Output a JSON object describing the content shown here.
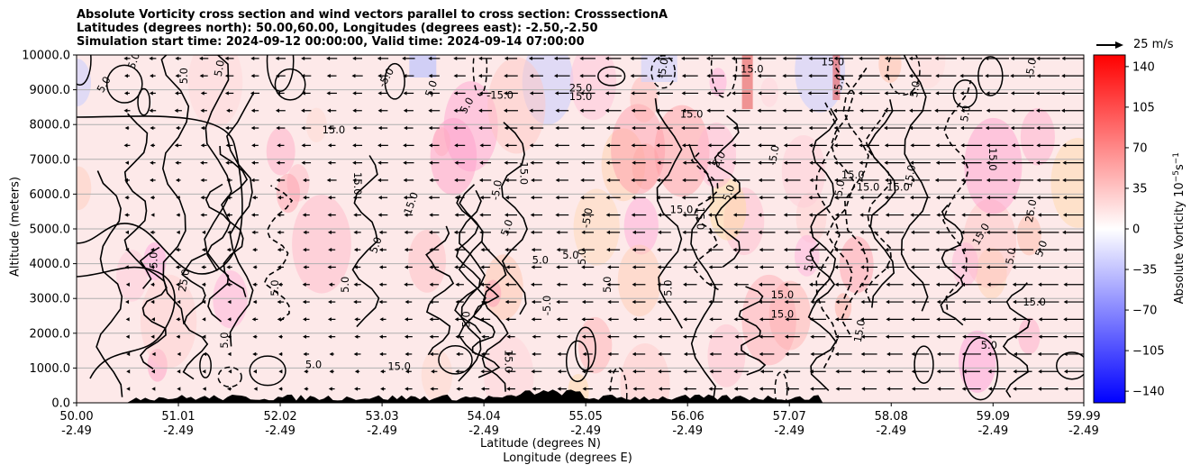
{
  "title_lines": [
    "Absolute Vorticity cross section and wind vectors parallel to cross section: CrosssectionA",
    "Latitudes (degrees north): 50.00,60.00, Longitudes (degrees east): -2.50,-2.50",
    "Simulation start time: 2024-09-12 00:00:00, Valid time: 2024-09-14 07:00:00"
  ],
  "colors": {
    "positive": "#ff0000",
    "negative": "#0000ff",
    "contour": "#000000",
    "terrain": "#000000",
    "grid": "#b0b0b0"
  },
  "chart_data": {
    "type": "heatmap",
    "subtype": "filled contour cross section with wind vectors",
    "ylabel": "Altitude (meters)",
    "xlabel_lines": [
      "Latitude (degrees N)",
      "Longitude (degrees E)"
    ],
    "x_ticks": [
      {
        "lat": "50.00",
        "lon": "-2.49"
      },
      {
        "lat": "51.01",
        "lon": "-2.49"
      },
      {
        "lat": "52.02",
        "lon": "-2.49"
      },
      {
        "lat": "53.03",
        "lon": "-2.49"
      },
      {
        "lat": "54.04",
        "lon": "-2.49"
      },
      {
        "lat": "55.05",
        "lon": "-2.49"
      },
      {
        "lat": "56.06",
        "lon": "-2.49"
      },
      {
        "lat": "57.07",
        "lon": "-2.49"
      },
      {
        "lat": "58.08",
        "lon": "-2.49"
      },
      {
        "lat": "59.09",
        "lon": "-2.49"
      },
      {
        "lat": "59.99",
        "lon": "-2.49"
      }
    ],
    "xlim": [
      50.0,
      59.99
    ],
    "ylim": [
      0,
      10000
    ],
    "y_ticks": [
      "0.0",
      "1000.0",
      "2000.0",
      "3000.0",
      "4000.0",
      "5000.0",
      "6000.0",
      "7000.0",
      "8000.0",
      "9000.0",
      "10000.0"
    ],
    "y_tick_values": [
      0,
      1000,
      2000,
      3000,
      4000,
      5000,
      6000,
      7000,
      8000,
      9000,
      10000
    ],
    "grid": "horizontal",
    "colorbar": {
      "label": "Absolute Vorticity 10$^{-5}$s$^{-1}$",
      "label_base": "Absolute Vorticity 10",
      "label_exp1": "−5",
      "label_mid": "s",
      "label_exp2": "−1",
      "range": [
        -150,
        150
      ],
      "ticks": [
        "140",
        "105",
        "70",
        "35",
        "0",
        "−35",
        "−70",
        "−105",
        "−140"
      ],
      "tick_values": [
        140,
        105,
        70,
        35,
        0,
        -35,
        -70,
        -105,
        -140
      ]
    },
    "quiver_key": {
      "label": "25 m/s",
      "speed": 25
    },
    "contour_labels": [
      {
        "text": "15.0",
        "lat": 52.55,
        "alt": 7750
      },
      {
        "text": "15.0",
        "lat": 52.75,
        "alt": 6300,
        "rot": 90
      },
      {
        "text": "15.0",
        "lat": 53.35,
        "alt": 5700,
        "rot": -70
      },
      {
        "text": "15.0",
        "lat": 54.4,
        "alt": 6600,
        "rot": 90
      },
      {
        "text": "15.0",
        "lat": 55.0,
        "alt": 8700
      },
      {
        "text": "15.0",
        "lat": 56.7,
        "alt": 9500
      },
      {
        "text": "15.0",
        "lat": 56.1,
        "alt": 8200
      },
      {
        "text": "15.0",
        "lat": 56.0,
        "alt": 5450
      },
      {
        "text": "15.0",
        "lat": 57.7,
        "alt": 6450
      },
      {
        "text": "15.0",
        "lat": 57.85,
        "alt": 6100
      },
      {
        "text": "15.0",
        "lat": 58.15,
        "alt": 6100
      },
      {
        "text": "15.0",
        "lat": 59.0,
        "alt": 4800,
        "rot": -60
      },
      {
        "text": "15.0",
        "lat": 57.5,
        "alt": 9700
      },
      {
        "text": "15.0",
        "lat": 58.3,
        "alt": 6500,
        "rot": -80
      },
      {
        "text": "15.0",
        "lat": 57.0,
        "alt": 3000
      },
      {
        "text": "15.0",
        "lat": 57.0,
        "alt": 2450
      },
      {
        "text": "15.0",
        "lat": 59.05,
        "alt": 7000,
        "rot": 90
      },
      {
        "text": "15.0",
        "lat": 59.5,
        "alt": 2800
      },
      {
        "text": "15.0",
        "lat": 57.8,
        "alt": 2050,
        "rot": -80
      },
      {
        "text": "15.0",
        "lat": 53.2,
        "alt": 950
      },
      {
        "text": "15.0",
        "lat": 54.25,
        "alt": 1200,
        "rot": 90
      },
      {
        "text": "15.0",
        "lat": 56.15,
        "alt": 5300,
        "rot": 90
      },
      {
        "text": "25.0",
        "lat": 51.1,
        "alt": 3500,
        "rot": -80
      },
      {
        "text": "25.0",
        "lat": 59.5,
        "alt": 5500,
        "rot": -80
      },
      {
        "text": "25.0",
        "lat": 55.0,
        "alt": 8950
      },
      {
        "text": "5.0",
        "lat": 50.8,
        "alt": 4100,
        "rot": -90
      },
      {
        "text": "5.0",
        "lat": 51.5,
        "alt": 1800,
        "rot": -90
      },
      {
        "text": "5.0",
        "lat": 52.0,
        "alt": 3300,
        "rot": -90
      },
      {
        "text": "5.0",
        "lat": 52.35,
        "alt": 1000
      },
      {
        "text": "5.0",
        "lat": 52.7,
        "alt": 3400,
        "rot": -90
      },
      {
        "text": "5.0",
        "lat": 53.0,
        "alt": 4500,
        "rot": -70
      },
      {
        "text": "5.0",
        "lat": 53.9,
        "alt": 2400,
        "rot": -90
      },
      {
        "text": "5.0",
        "lat": 54.3,
        "alt": 5000,
        "rot": -70
      },
      {
        "text": "5.0",
        "lat": 54.6,
        "alt": 4000
      },
      {
        "text": "5.0",
        "lat": 54.9,
        "alt": 4150
      },
      {
        "text": "5.0",
        "lat": 55.05,
        "alt": 4200,
        "rot": -90
      },
      {
        "text": "5.0",
        "lat": 55.3,
        "alt": 3400,
        "rot": -90
      },
      {
        "text": "5.0",
        "lat": 55.9,
        "alt": 3300,
        "rot": -90
      },
      {
        "text": "5.0",
        "lat": 56.4,
        "alt": 6950,
        "rot": -60
      },
      {
        "text": "5.0",
        "lat": 56.5,
        "alt": 6000,
        "rot": -70
      },
      {
        "text": "5.0",
        "lat": 57.3,
        "alt": 4000,
        "rot": -80
      },
      {
        "text": "5.0",
        "lat": 57.6,
        "alt": 9200,
        "rot": -80
      },
      {
        "text": "5.0",
        "lat": 58.35,
        "alt": 9000,
        "rot": -80
      },
      {
        "text": "5.0",
        "lat": 59.05,
        "alt": 1550
      },
      {
        "text": "5.0",
        "lat": 59.3,
        "alt": 4200,
        "rot": -80
      },
      {
        "text": "5.0",
        "lat": 59.6,
        "alt": 4400,
        "rot": -70
      },
      {
        "text": "5.0",
        "lat": 50.3,
        "alt": 9100,
        "rot": -60
      },
      {
        "text": "5.0",
        "lat": 50.6,
        "alt": 9800,
        "rot": -70
      },
      {
        "text": "5.0",
        "lat": 51.1,
        "alt": 9400,
        "rot": -90
      },
      {
        "text": "5.0",
        "lat": 51.45,
        "alt": 9600,
        "rot": -80
      },
      {
        "text": "5.0",
        "lat": 53.55,
        "alt": 9000,
        "rot": -70
      },
      {
        "text": "5.0",
        "lat": 53.9,
        "alt": 8500,
        "rot": -60
      },
      {
        "text": "5.0",
        "lat": 58.85,
        "alt": 8300,
        "rot": -80
      },
      {
        "text": "-5.0",
        "lat": 55.1,
        "alt": 5300,
        "rot": -80
      },
      {
        "text": "-5.0",
        "lat": 53.1,
        "alt": 9300,
        "rot": -60
      },
      {
        "text": "-5.0",
        "lat": 56.95,
        "alt": 7100,
        "rot": -80
      },
      {
        "text": "-5.0",
        "lat": 54.2,
        "alt": 6100,
        "rot": -80
      },
      {
        "text": "-5.0",
        "lat": 54.7,
        "alt": 2800,
        "rot": -90
      },
      {
        "text": "-5.0",
        "lat": 57.6,
        "alt": 6100,
        "rot": -80
      },
      {
        "text": "-5.0",
        "lat": 55.85,
        "alt": 9600,
        "rot": -80
      },
      {
        "text": "-5.0",
        "lat": 59.5,
        "alt": 9600,
        "rot": -80
      },
      {
        "text": "-15.0",
        "lat": 54.2,
        "alt": 8750
      }
    ]
  }
}
